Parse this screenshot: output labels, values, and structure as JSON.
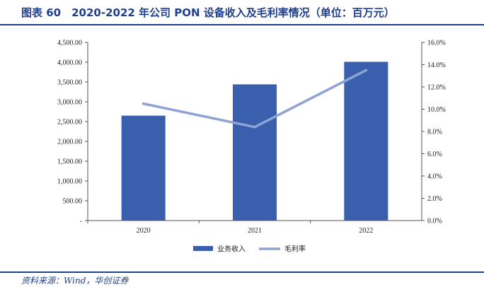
{
  "title": "图表 60　2020-2022 年公司 PON 设备收入及毛利率情况（单位：百万元）",
  "source": "资料来源：Wind，华创证券",
  "colors": {
    "bar": "#3a5fad",
    "line": "#8ea3d4",
    "accent": "#1f3f8f"
  },
  "chart_data": {
    "type": "bar",
    "categories": [
      "2020",
      "2021",
      "2022"
    ],
    "series": [
      {
        "name": "业务收入",
        "type": "bar",
        "axis": "left",
        "values": [
          2650,
          3440,
          4010
        ]
      },
      {
        "name": "毛利率",
        "type": "line",
        "axis": "right",
        "values": [
          10.5,
          8.4,
          13.5
        ]
      }
    ],
    "y_left": {
      "lim": [
        0,
        4500
      ],
      "ticks": [
        "-",
        "500.00",
        "1,000.00",
        "1,500.00",
        "2,000.00",
        "2,500.00",
        "3,000.00",
        "3,500.00",
        "4,000.00",
        "4,500.00"
      ]
    },
    "y_right": {
      "lim": [
        0,
        16
      ],
      "ticks": [
        "0.0%",
        "2.0%",
        "4.0%",
        "6.0%",
        "8.0%",
        "10.0%",
        "12.0%",
        "14.0%",
        "16.0%"
      ]
    },
    "grid": false,
    "legend": "bottom"
  }
}
